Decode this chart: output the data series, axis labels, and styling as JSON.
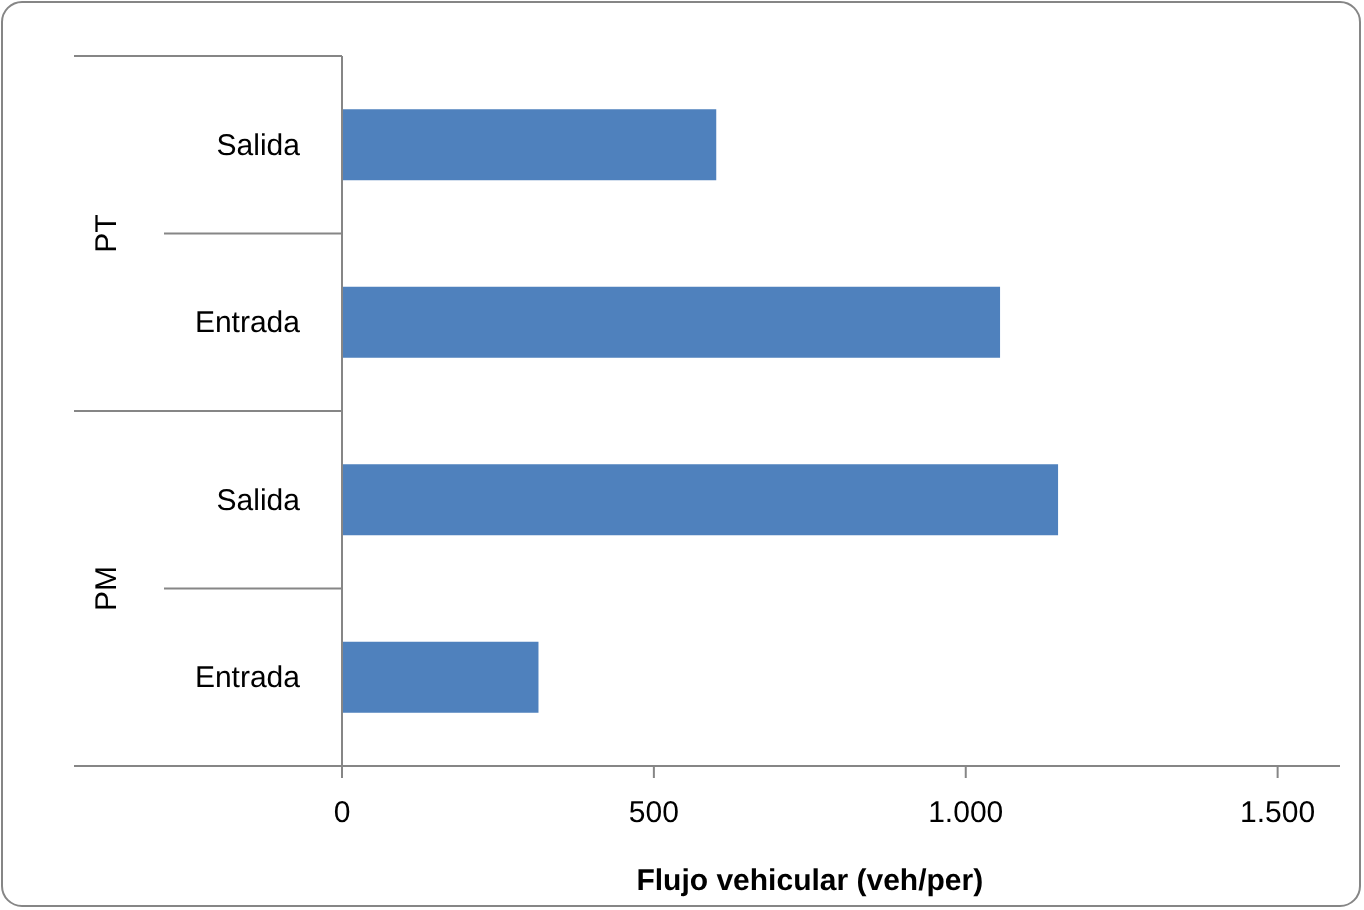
{
  "chart_data": {
    "type": "bar",
    "orientation": "horizontal",
    "xlabel": "Flujo vehicular (veh/per)",
    "categories": [
      "Salida",
      "Entrada",
      "Salida",
      "Entrada"
    ],
    "values": [
      600,
      1055,
      1148,
      315
    ],
    "color": "#4f81bd",
    "xlim": [
      0,
      1600
    ],
    "xticks": [
      0,
      500,
      {
        "value": 1000,
        "label": "1.000"
      },
      {
        "value": 1500,
        "label": "1.500"
      }
    ],
    "annotations": [
      "PT",
      "PM"
    ],
    "grid": false
  }
}
